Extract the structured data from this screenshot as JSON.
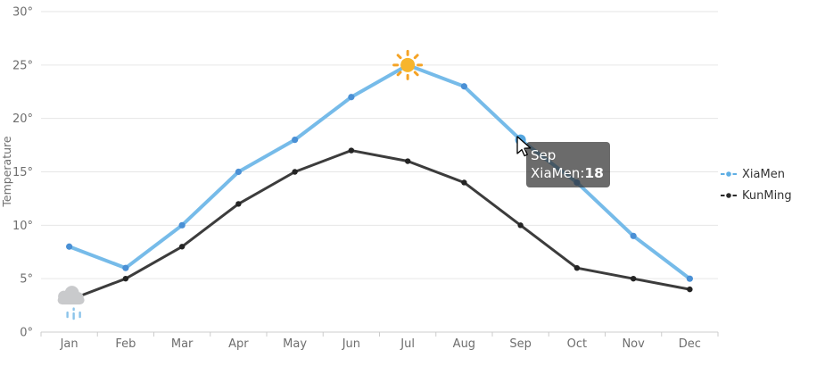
{
  "chart_data": {
    "type": "line",
    "title": "",
    "xlabel": "",
    "ylabel": "Temperature",
    "ylim": [
      0,
      30
    ],
    "y_ticks": [
      0,
      5,
      10,
      15,
      20,
      25,
      30
    ],
    "y_tick_suffix": "°",
    "grid": true,
    "legend_position": "right",
    "categories": [
      "Jan",
      "Feb",
      "Mar",
      "Apr",
      "May",
      "Jun",
      "Jul",
      "Aug",
      "Sep",
      "Oct",
      "Nov",
      "Dec"
    ],
    "series": [
      {
        "name": "XiaMen",
        "values": [
          8,
          6,
          10,
          15,
          18,
          22,
          25,
          23,
          18,
          14,
          9,
          5
        ],
        "line_color": "#76BBE9",
        "point_color": "#4A90D5",
        "line_width": 4,
        "point_radius": 3.6
      },
      {
        "name": "KunMing",
        "values": [
          3,
          5,
          8,
          12,
          15,
          17,
          16,
          14,
          10,
          6,
          5,
          4
        ],
        "line_color": "#3C3C3C",
        "point_color": "#242424",
        "line_width": 3,
        "point_radius": 3.2
      }
    ],
    "annotations": [
      {
        "icon": "sun",
        "series_index": 0,
        "category_index": 6
      },
      {
        "icon": "rain-cloud",
        "series_index": 1,
        "category_index": 0
      }
    ],
    "highlight": {
      "series_index": 0,
      "category_index": 8,
      "value": 18
    }
  },
  "tooltip": {
    "title": "Sep",
    "series_name": "XiaMen:",
    "value": "18"
  },
  "legend": {
    "items": [
      {
        "label": "XiaMen",
        "color": "#5FAFE4"
      },
      {
        "label": "KunMing",
        "color": "#2B2B2B"
      }
    ]
  },
  "colors": {
    "grid": "#E6E6E6",
    "axis_line": "#CCCCCC",
    "axis_text": "#6E6E6E",
    "legend_text": "#333333",
    "tooltip_bg": "rgba(50,50,50,0.72)",
    "tooltip_text": "#FFFFFF",
    "highlight_point": "#55A6DF",
    "sun_core": "#F7B52C",
    "sun_rays": "#F5A325",
    "cloud": "#C9CACC",
    "rain": "#8CC4EA"
  }
}
